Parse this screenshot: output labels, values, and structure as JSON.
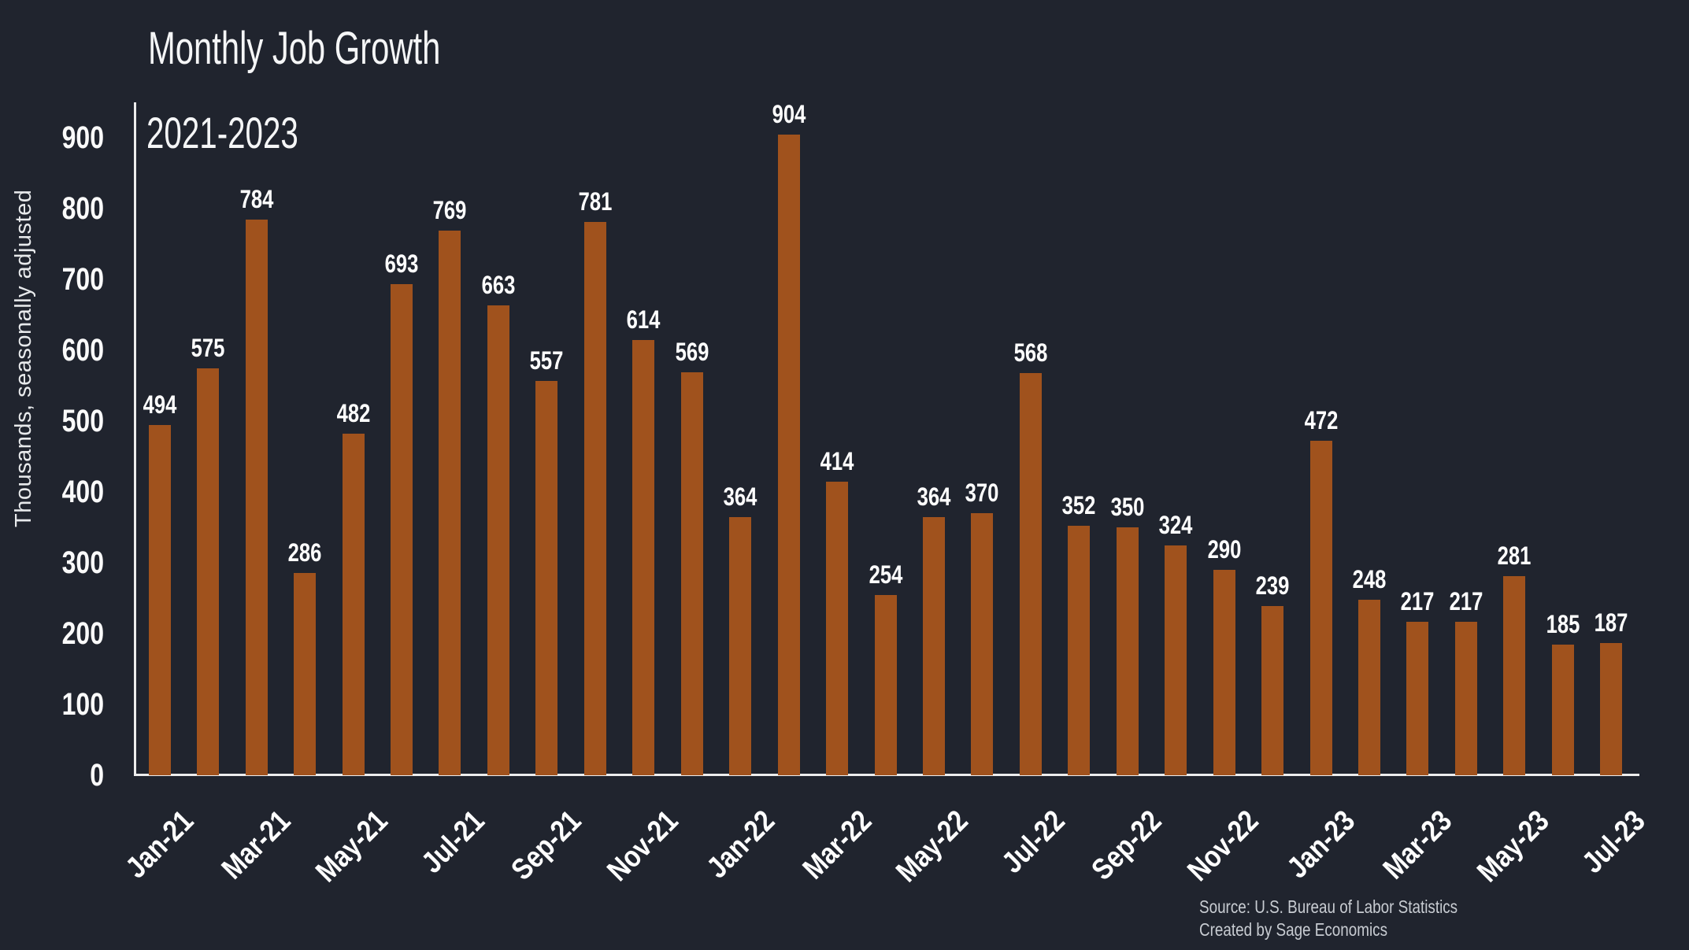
{
  "header": {
    "title": "Monthly Job Growth",
    "subtitle": "2021-2023"
  },
  "source": {
    "line1": "Source: U.S. Bureau of Labor Statistics",
    "line2": "Created by Sage Economics"
  },
  "colors": {
    "background": "#20242e",
    "bar": "#a0521d",
    "axis_line": "#ededed",
    "label_text": "#ffffff",
    "source_text": "#c8ccd2"
  },
  "chart_data": {
    "type": "bar",
    "title": "Monthly Job Growth",
    "subtitle": "2021-2023",
    "ylabel": "Thousands, seasonally adjusted",
    "xlabel": "",
    "ylim": [
      0,
      950
    ],
    "yticks": [
      0,
      100,
      200,
      300,
      400,
      500,
      600,
      700,
      800,
      900
    ],
    "grid": false,
    "legend": false,
    "values": [
      494,
      575,
      784,
      286,
      482,
      693,
      769,
      663,
      557,
      781,
      614,
      569,
      364,
      904,
      414,
      254,
      364,
      370,
      568,
      352,
      350,
      324,
      290,
      239,
      472,
      248,
      217,
      217,
      281,
      185,
      187
    ],
    "bar_value_labels": [
      494,
      575,
      784,
      286,
      482,
      693,
      769,
      663,
      557,
      781,
      614,
      569,
      364,
      904,
      414,
      254,
      364,
      370,
      568,
      352,
      350,
      324,
      290,
      239,
      472,
      248,
      217,
      217,
      281,
      185,
      187
    ],
    "x_tick_labels": [
      "Jan-21",
      "Mar-21",
      "May-21",
      "Jul-21",
      "Sep-21",
      "Nov-21",
      "Jan-22",
      "Mar-22",
      "May-22",
      "Jul-22",
      "Sep-22",
      "Nov-22",
      "Jan-23",
      "Mar-23",
      "May-23",
      "Jul-23"
    ],
    "x_tick_bar_indices": [
      0,
      2,
      4,
      6,
      8,
      10,
      12,
      14,
      16,
      18,
      20,
      22,
      24,
      26,
      28,
      30
    ]
  }
}
